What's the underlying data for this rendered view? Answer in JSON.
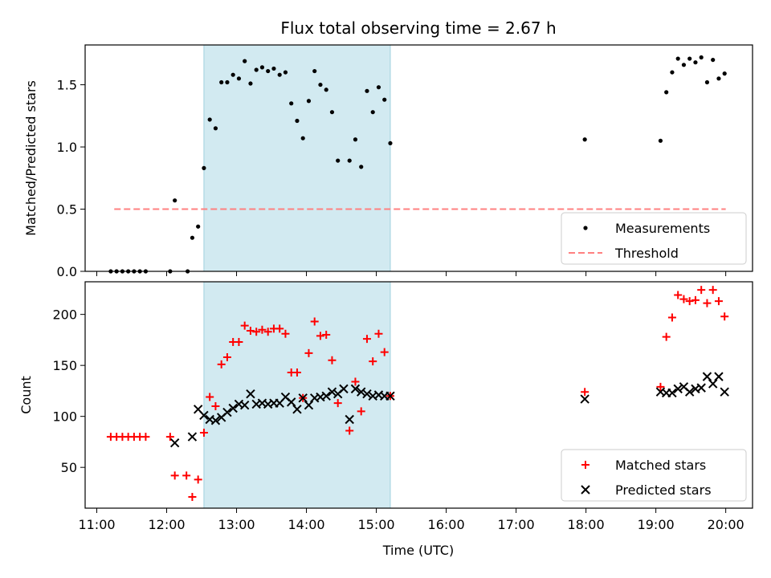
{
  "chart_data": {
    "type": "scatter",
    "title": "Flux total observing time = 2.67 h",
    "xlabel": "Time (UTC)",
    "x_ticks": [
      "11:00",
      "12:00",
      "13:00",
      "14:00",
      "15:00",
      "16:00",
      "17:00",
      "18:00",
      "19:00",
      "20:00"
    ],
    "xlim": [
      "10:50",
      "20:23"
    ],
    "shaded_interval": [
      "12:32",
      "15:12"
    ],
    "shade_color": "#add8e6",
    "panels": [
      {
        "ylabel": "Matched/Predicted stars",
        "ylim": [
          0,
          1.82
        ],
        "y_ticks": [
          0.0,
          0.5,
          1.0,
          1.5
        ],
        "y_tick_labels": [
          "0.0",
          "0.5",
          "1.0",
          "1.5"
        ],
        "legend_position": "lower-right",
        "series": [
          {
            "name": "Measurements",
            "marker": "dot",
            "color": "#000000",
            "points": [
              [
                "11:12",
                0.0
              ],
              [
                "11:17",
                0.0
              ],
              [
                "11:22",
                0.0
              ],
              [
                "11:27",
                0.0
              ],
              [
                "11:32",
                0.0
              ],
              [
                "11:37",
                0.0
              ],
              [
                "11:42",
                0.0
              ],
              [
                "12:03",
                0.0
              ],
              [
                "12:07",
                0.57
              ],
              [
                "12:18",
                0.0
              ],
              [
                "12:22",
                0.27
              ],
              [
                "12:27",
                0.36
              ],
              [
                "12:32",
                0.83
              ],
              [
                "12:37",
                1.22
              ],
              [
                "12:42",
                1.15
              ],
              [
                "12:47",
                1.52
              ],
              [
                "12:52",
                1.52
              ],
              [
                "12:57",
                1.58
              ],
              [
                "13:02",
                1.55
              ],
              [
                "13:07",
                1.69
              ],
              [
                "13:12",
                1.51
              ],
              [
                "13:17",
                1.62
              ],
              [
                "13:22",
                1.64
              ],
              [
                "13:27",
                1.61
              ],
              [
                "13:32",
                1.63
              ],
              [
                "13:37",
                1.58
              ],
              [
                "13:42",
                1.6
              ],
              [
                "13:47",
                1.35
              ],
              [
                "13:52",
                1.21
              ],
              [
                "13:57",
                1.07
              ],
              [
                "14:02",
                1.37
              ],
              [
                "14:07",
                1.61
              ],
              [
                "14:12",
                1.5
              ],
              [
                "14:17",
                1.46
              ],
              [
                "14:22",
                1.28
              ],
              [
                "14:27",
                0.89
              ],
              [
                "14:37",
                0.89
              ],
              [
                "14:42",
                1.06
              ],
              [
                "14:47",
                0.84
              ],
              [
                "14:52",
                1.45
              ],
              [
                "14:57",
                1.28
              ],
              [
                "15:02",
                1.48
              ],
              [
                "15:07",
                1.38
              ],
              [
                "15:12",
                1.03
              ],
              [
                "17:59",
                1.06
              ],
              [
                "19:04",
                1.05
              ],
              [
                "19:09",
                1.44
              ],
              [
                "19:14",
                1.6
              ],
              [
                "19:19",
                1.71
              ],
              [
                "19:24",
                1.66
              ],
              [
                "19:29",
                1.71
              ],
              [
                "19:34",
                1.68
              ],
              [
                "19:39",
                1.72
              ],
              [
                "19:44",
                1.52
              ],
              [
                "19:49",
                1.7
              ],
              [
                "19:54",
                1.55
              ],
              [
                "19:59",
                1.59
              ]
            ]
          },
          {
            "name": "Threshold",
            "marker": "dashed-line",
            "color": "#ff8080",
            "points": [
              [
                "11:15",
                0.5
              ],
              [
                "20:00",
                0.5
              ]
            ]
          }
        ]
      },
      {
        "ylabel": "Count",
        "ylim": [
          10,
          232
        ],
        "y_ticks": [
          50,
          100,
          150,
          200
        ],
        "y_tick_labels": [
          "50",
          "100",
          "150",
          "200"
        ],
        "legend_position": "lower-right",
        "series": [
          {
            "name": "Matched stars",
            "marker": "plus",
            "color": "#ff0000",
            "points": [
              [
                "11:12",
                80
              ],
              [
                "11:17",
                80
              ],
              [
                "11:22",
                80
              ],
              [
                "11:27",
                80
              ],
              [
                "11:32",
                80
              ],
              [
                "11:37",
                80
              ],
              [
                "11:42",
                80
              ],
              [
                "12:03",
                80
              ],
              [
                "12:07",
                42
              ],
              [
                "12:17",
                42
              ],
              [
                "12:22",
                21
              ],
              [
                "12:27",
                38
              ],
              [
                "12:32",
                84
              ],
              [
                "12:37",
                119
              ],
              [
                "12:42",
                110
              ],
              [
                "12:47",
                151
              ],
              [
                "12:52",
                158
              ],
              [
                "12:57",
                173
              ],
              [
                "13:02",
                173
              ],
              [
                "13:07",
                189
              ],
              [
                "13:12",
                184
              ],
              [
                "13:17",
                183
              ],
              [
                "13:22",
                185
              ],
              [
                "13:27",
                183
              ],
              [
                "13:32",
                186
              ],
              [
                "13:37",
                186
              ],
              [
                "13:42",
                181
              ],
              [
                "13:47",
                143
              ],
              [
                "13:52",
                143
              ],
              [
                "13:57",
                118
              ],
              [
                "14:02",
                162
              ],
              [
                "14:07",
                193
              ],
              [
                "14:12",
                179
              ],
              [
                "14:17",
                180
              ],
              [
                "14:22",
                155
              ],
              [
                "14:27",
                113
              ],
              [
                "14:37",
                86
              ],
              [
                "14:42",
                134
              ],
              [
                "14:47",
                105
              ],
              [
                "14:52",
                176
              ],
              [
                "14:57",
                154
              ],
              [
                "15:02",
                181
              ],
              [
                "15:07",
                163
              ],
              [
                "15:12",
                120
              ],
              [
                "17:59",
                124
              ],
              [
                "19:04",
                129
              ],
              [
                "19:09",
                178
              ],
              [
                "19:14",
                197
              ],
              [
                "19:19",
                219
              ],
              [
                "19:24",
                215
              ],
              [
                "19:29",
                213
              ],
              [
                "19:34",
                214
              ],
              [
                "19:39",
                224
              ],
              [
                "19:44",
                211
              ],
              [
                "19:49",
                224
              ],
              [
                "19:54",
                213
              ],
              [
                "19:59",
                198
              ]
            ]
          },
          {
            "name": "Predicted stars",
            "marker": "x",
            "color": "#000000",
            "points": [
              [
                "12:07",
                74
              ],
              [
                "12:22",
                80
              ],
              [
                "12:27",
                107
              ],
              [
                "12:32",
                101
              ],
              [
                "12:37",
                97
              ],
              [
                "12:42",
                96
              ],
              [
                "12:47",
                99
              ],
              [
                "12:52",
                104
              ],
              [
                "12:57",
                108
              ],
              [
                "13:02",
                112
              ],
              [
                "13:07",
                111
              ],
              [
                "13:12",
                122
              ],
              [
                "13:17",
                112
              ],
              [
                "13:22",
                113
              ],
              [
                "13:27",
                112
              ],
              [
                "13:32",
                113
              ],
              [
                "13:37",
                113
              ],
              [
                "13:42",
                119
              ],
              [
                "13:47",
                114
              ],
              [
                "13:52",
                107
              ],
              [
                "13:57",
                118
              ],
              [
                "14:02",
                111
              ],
              [
                "14:07",
                118
              ],
              [
                "14:12",
                119
              ],
              [
                "14:17",
                120
              ],
              [
                "14:22",
                124
              ],
              [
                "14:27",
                122
              ],
              [
                "14:32",
                127
              ],
              [
                "14:37",
                97
              ],
              [
                "14:42",
                127
              ],
              [
                "14:47",
                124
              ],
              [
                "14:52",
                122
              ],
              [
                "14:57",
                120
              ],
              [
                "15:02",
                121
              ],
              [
                "15:07",
                120
              ],
              [
                "15:12",
                120
              ],
              [
                "17:59",
                117
              ],
              [
                "19:04",
                124
              ],
              [
                "19:09",
                123
              ],
              [
                "19:14",
                123
              ],
              [
                "19:19",
                127
              ],
              [
                "19:24",
                129
              ],
              [
                "19:29",
                124
              ],
              [
                "19:34",
                127
              ],
              [
                "19:39",
                128
              ],
              [
                "19:44",
                139
              ],
              [
                "19:49",
                132
              ],
              [
                "19:54",
                139
              ],
              [
                "19:59",
                124
              ]
            ]
          }
        ]
      }
    ]
  }
}
